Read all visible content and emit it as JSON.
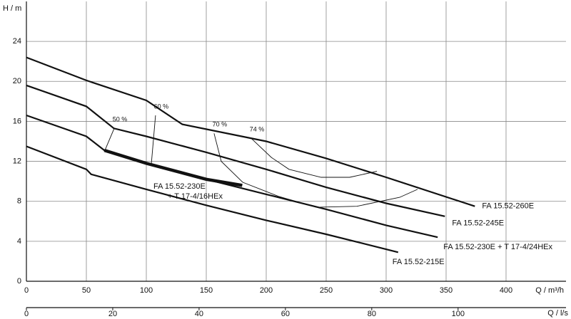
{
  "chart_data": {
    "type": "line",
    "x_label": "Q / m³/h",
    "y_label": "H / m",
    "x2_label": "Q / l/s",
    "xlim": [
      0,
      450
    ],
    "xticks": [
      0,
      50,
      100,
      150,
      200,
      250,
      300,
      350,
      400
    ],
    "x2lim": [
      0,
      125
    ],
    "x2ticks": [
      0,
      20,
      40,
      60,
      80,
      100
    ],
    "ylim": [
      0,
      28
    ],
    "yticks": [
      0,
      4,
      8,
      12,
      16,
      20,
      24
    ],
    "grid": true,
    "series": [
      {
        "label": [
          "FA 15.52-260E"
        ],
        "color": "#111111",
        "x": [
          0,
          50,
          100,
          130,
          200,
          250,
          300,
          374
        ],
        "values": [
          22.4,
          20.1,
          18.1,
          15.7,
          14.0,
          12.3,
          10.4,
          7.5
        ]
      },
      {
        "label": [
          "FA 15.52-245E"
        ],
        "color": "#111111",
        "x": [
          0,
          50,
          73,
          100,
          150,
          200,
          250,
          300,
          349
        ],
        "values": [
          19.6,
          17.5,
          15.3,
          14.5,
          12.9,
          11.2,
          9.4,
          7.8,
          6.5
        ]
      },
      {
        "label": [
          "FA 15.52-230E + T 17-4/24HEx"
        ],
        "color": "#111111",
        "x": [
          0,
          50,
          65,
          100,
          150,
          200,
          250,
          300,
          343
        ],
        "values": [
          16.6,
          14.5,
          13.1,
          11.8,
          10.2,
          8.7,
          7.2,
          5.6,
          4.4
        ]
      },
      {
        "label": [
          "FA 15.52-230E",
          "+ T 17-4/16HEx"
        ],
        "color": "#111111",
        "x": [
          65,
          100,
          150,
          180
        ],
        "values": [
          13.1,
          11.8,
          10.2,
          9.6
        ]
      },
      {
        "label": [
          "FA 15.52-215E"
        ],
        "color": "#111111",
        "x": [
          0,
          50,
          54,
          100,
          150,
          200,
          250,
          310
        ],
        "values": [
          13.5,
          11.2,
          10.7,
          9.2,
          7.6,
          6.1,
          4.7,
          2.9
        ]
      }
    ],
    "efficiency_curves": [
      {
        "label": "50 %",
        "x": [
          73.2,
          65.5
        ],
        "values": [
          15.3,
          13.1
        ]
      },
      {
        "label": "60 %",
        "x": [
          107.7,
          104.2
        ],
        "values": [
          16.6,
          11.8
        ]
      },
      {
        "label": "70 %",
        "x": [
          156.5,
          162.5,
          180.4,
          210.1,
          241.7,
          275.6,
          311.3,
          326.2
        ],
        "values": [
          14.8,
          12.0,
          9.9,
          8.5,
          7.4,
          7.5,
          8.4,
          9.2
        ]
      },
      {
        "label": "74 %",
        "x": [
          187.5,
          204.2,
          219,
          245.8,
          269.6,
          292.3
        ],
        "values": [
          14.3,
          12.4,
          11.2,
          10.4,
          10.4,
          11.0
        ]
      }
    ]
  }
}
